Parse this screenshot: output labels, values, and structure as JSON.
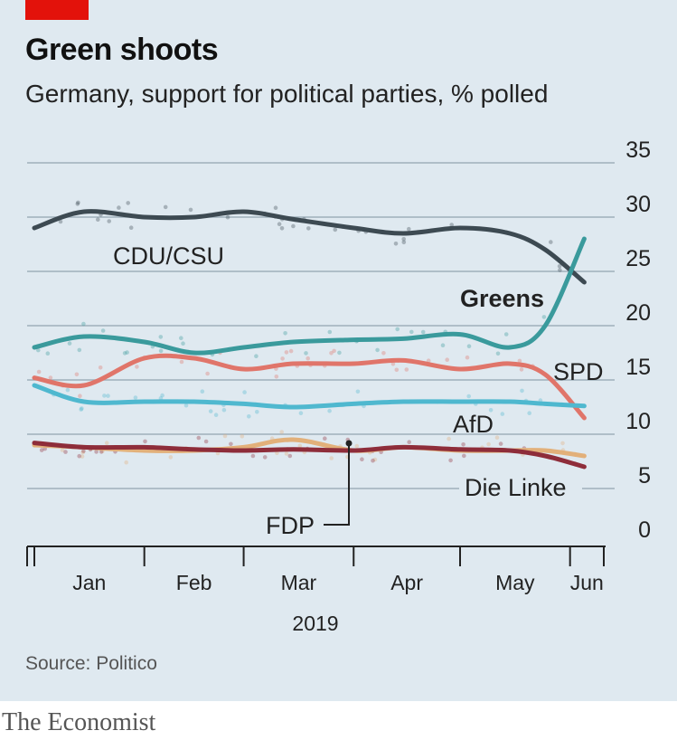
{
  "header": {
    "title": "Green shoots",
    "subtitle": "Germany, support for political parties, % polled"
  },
  "footer": {
    "source": "Source: Politico",
    "brand": "The Economist"
  },
  "chart_data": {
    "type": "line",
    "title": "Green shoots",
    "subtitle": "Germany, support for political parties, % polled",
    "ylim": [
      0,
      35
    ],
    "y_ticks": [
      0,
      5,
      10,
      15,
      20,
      25,
      30,
      35
    ],
    "grid": true,
    "x_labels": [
      "Jan",
      "Feb",
      "Mar",
      "Apr",
      "May",
      "Jun"
    ],
    "x_year": "2019",
    "x": [
      "2019-01-01",
      "2019-01-15",
      "2019-02-01",
      "2019-02-15",
      "2019-03-01",
      "2019-03-15",
      "2019-04-01",
      "2019-04-15",
      "2019-05-01",
      "2019-05-15",
      "2019-05-25",
      "2019-06-05"
    ],
    "series": [
      {
        "name": "CDU/CSU",
        "color": "#3d4a52",
        "values": [
          29.0,
          30.5,
          30.0,
          30.0,
          30.5,
          29.8,
          29.0,
          28.5,
          29.0,
          28.5,
          27.0,
          24.0
        ]
      },
      {
        "name": "Greens",
        "color": "#3a9a9c",
        "values": [
          18.0,
          19.0,
          18.5,
          17.5,
          18.0,
          18.5,
          18.7,
          18.8,
          19.2,
          18.0,
          20.0,
          28.0
        ]
      },
      {
        "name": "SPD",
        "color": "#e0756a",
        "values": [
          15.2,
          14.5,
          17.0,
          17.0,
          16.0,
          16.5,
          16.5,
          16.8,
          16.0,
          16.5,
          15.5,
          11.5
        ]
      },
      {
        "name": "AfD",
        "color": "#4fb8cf",
        "values": [
          14.5,
          13.0,
          13.0,
          13.0,
          12.8,
          12.5,
          12.8,
          13.0,
          13.0,
          13.0,
          12.8,
          12.6
        ]
      },
      {
        "name": "FDP",
        "color": "#e2b07a",
        "values": [
          9.0,
          8.8,
          8.5,
          8.5,
          8.8,
          9.5,
          8.5,
          8.8,
          8.5,
          8.5,
          8.5,
          8.0
        ]
      },
      {
        "name": "Die Linke",
        "color": "#8e2d3a",
        "values": [
          9.2,
          8.8,
          8.8,
          8.6,
          8.5,
          8.6,
          8.5,
          8.8,
          8.6,
          8.5,
          8.0,
          7.0
        ]
      }
    ]
  }
}
